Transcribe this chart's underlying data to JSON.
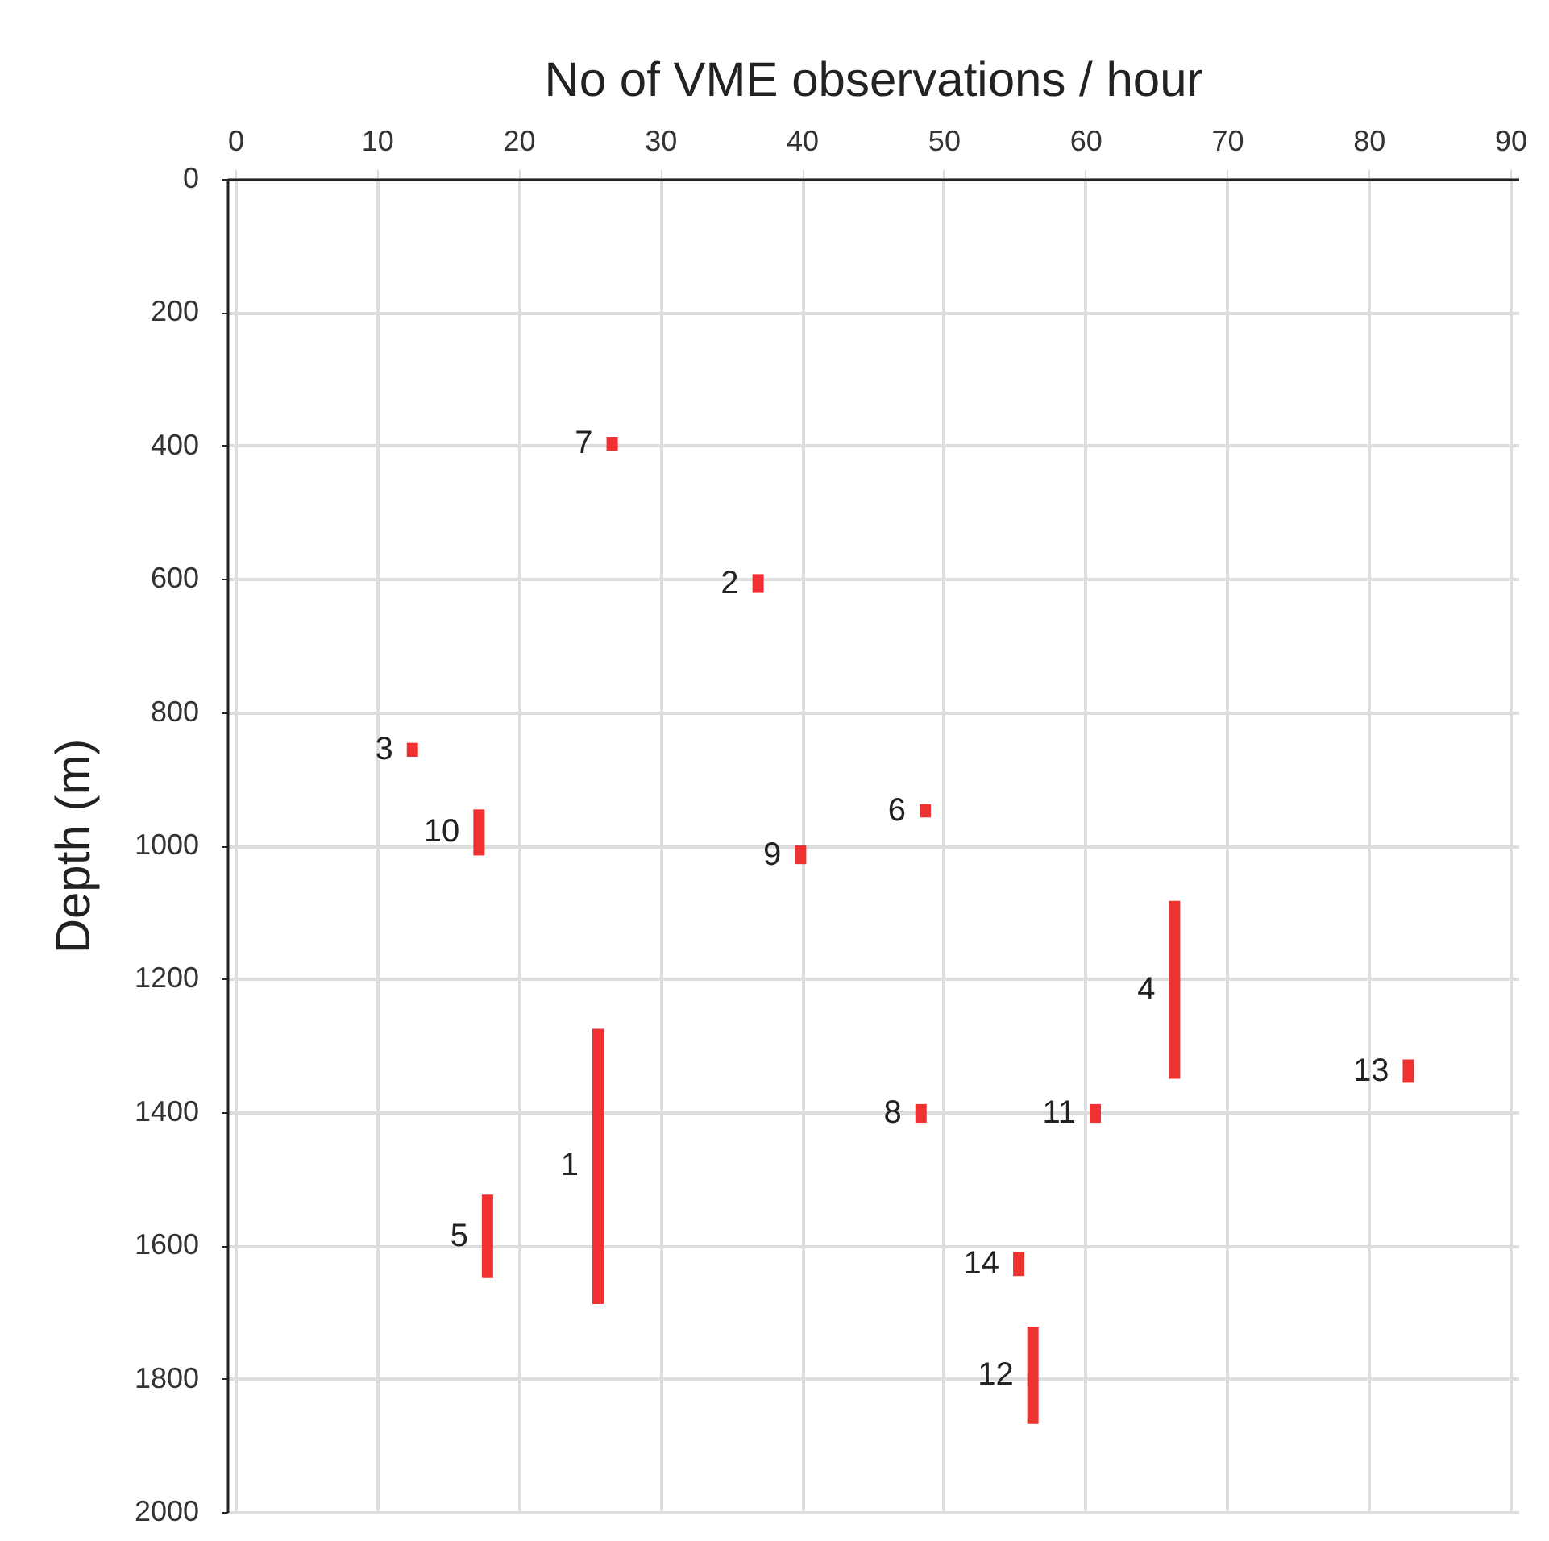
{
  "chart_data": {
    "type": "bar",
    "xlabel": "No of VME observations / hour",
    "ylabel": "Depth (m)",
    "x": [
      12.5,
      17.2,
      17.8,
      25.6,
      26.6,
      36.9,
      39.9,
      48.4,
      48.7,
      55.3,
      56.3,
      60.7,
      66.3,
      82.8
    ],
    "base": [
      846,
      946,
      1524,
      1275,
      387,
      593,
      1000,
      1388,
      938,
      1610,
      1722,
      1388,
      1083,
      1321
    ],
    "values": [
      21,
      69,
      125,
      413,
      21,
      28,
      28,
      28,
      20,
      36,
      146,
      28,
      267,
      35
    ],
    "color": "#ee3131",
    "xlim": [
      0,
      90
    ],
    "xticks": [
      0,
      10,
      20,
      30,
      40,
      50,
      60,
      70,
      80,
      90
    ],
    "ylim": [
      2000,
      0
    ],
    "yticks": [
      0,
      200,
      400,
      600,
      800,
      1000,
      1200,
      1400,
      1600,
      1800,
      2000
    ],
    "grid": true,
    "annotations": [
      {
        "text": "1",
        "x": 25.6,
        "y": 1480
      },
      {
        "text": "2",
        "x": 36.9,
        "y": 607
      },
      {
        "text": "3",
        "x": 12.5,
        "y": 856
      },
      {
        "text": "4",
        "x": 66.3,
        "y": 1216
      },
      {
        "text": "5",
        "x": 17.8,
        "y": 1586
      },
      {
        "text": "6",
        "x": 48.7,
        "y": 948
      },
      {
        "text": "7",
        "x": 26.6,
        "y": 397
      },
      {
        "text": "8",
        "x": 48.4,
        "y": 1402
      },
      {
        "text": "9",
        "x": 39.9,
        "y": 1014
      },
      {
        "text": "10",
        "x": 17.2,
        "y": 980
      },
      {
        "text": "11",
        "x": 60.7,
        "y": 1402
      },
      {
        "text": "12",
        "x": 56.3,
        "y": 1795
      },
      {
        "text": "13",
        "x": 82.8,
        "y": 1338
      },
      {
        "text": "14",
        "x": 55.3,
        "y": 1628
      }
    ]
  }
}
